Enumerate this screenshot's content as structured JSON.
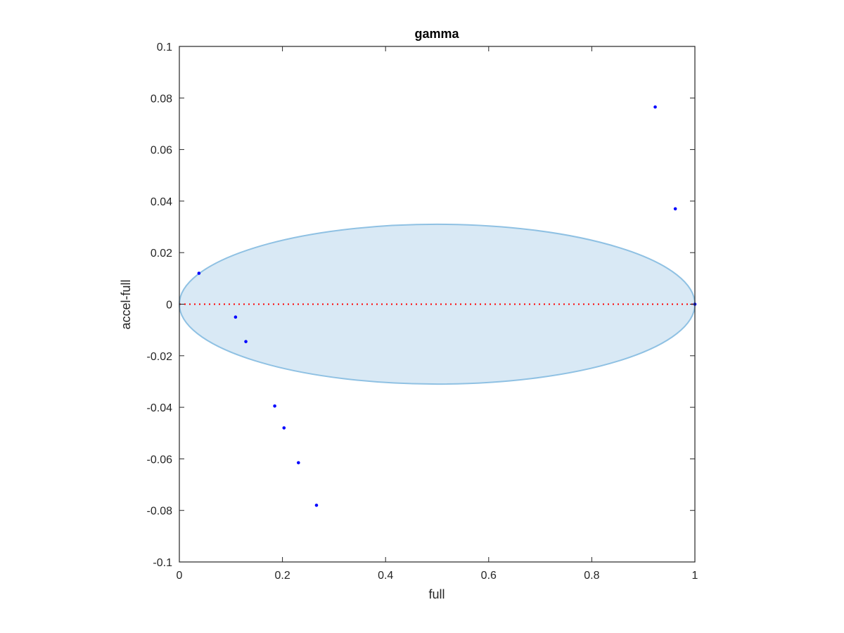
{
  "chart_data": {
    "type": "scatter",
    "title": "gamma",
    "xlabel": "full",
    "ylabel": "accel-full",
    "xlim": [
      0,
      1
    ],
    "ylim": [
      -0.1,
      0.1
    ],
    "x_ticks": [
      0,
      0.2,
      0.4,
      0.6,
      0.8,
      1
    ],
    "x_tick_labels": [
      "0",
      "0.2",
      "0.4",
      "0.6",
      "0.8",
      "1"
    ],
    "y_ticks": [
      -0.1,
      -0.08,
      -0.06,
      -0.04,
      -0.02,
      0,
      0.02,
      0.04,
      0.06,
      0.08,
      0.1
    ],
    "y_tick_labels": [
      "-0.1",
      "-0.08",
      "-0.06",
      "-0.04",
      "-0.02",
      "0",
      "0.02",
      "0.04",
      "0.06",
      "0.08",
      "0.1"
    ],
    "grid": false,
    "points": [
      {
        "x": 0.038,
        "y": 0.012
      },
      {
        "x": 0.109,
        "y": -0.005
      },
      {
        "x": 0.129,
        "y": -0.0145
      },
      {
        "x": 0.185,
        "y": -0.0395
      },
      {
        "x": 0.203,
        "y": -0.048
      },
      {
        "x": 0.231,
        "y": -0.0615
      },
      {
        "x": 0.266,
        "y": -0.078
      },
      {
        "x": 0.923,
        "y": 0.0765
      },
      {
        "x": 0.962,
        "y": 0.037
      },
      {
        "x": 1.0,
        "y": 0.0
      }
    ],
    "ellipse": {
      "cx": 0.5,
      "cy": 0.0,
      "rx": 0.5,
      "ry": 0.031
    },
    "reference_line": {
      "y": 0,
      "style": "dotted"
    },
    "colors": {
      "points": "#0000ff",
      "ellipse_fill": "#d9e9f5",
      "ellipse_stroke": "#8fc1e3",
      "reference_line": "#ff0000",
      "axes": "#262626"
    }
  }
}
